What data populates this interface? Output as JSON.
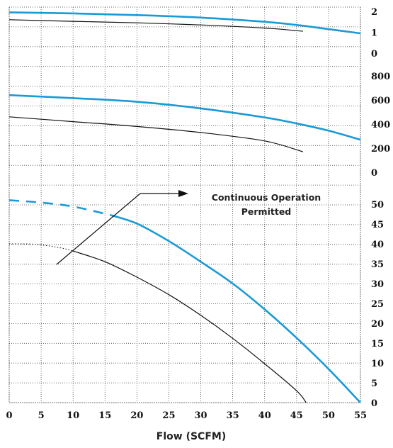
{
  "chart_data": {
    "type": "line",
    "xlabel": "Flow (SCFM)",
    "x_ticks": [
      "0",
      "5",
      "10",
      "15",
      "20",
      "25",
      "30",
      "35",
      "40",
      "45",
      "50",
      "55"
    ],
    "xlim": [
      0,
      55
    ],
    "grid": true,
    "colors": {
      "blue": "#1a9ad6",
      "black": "#111111"
    },
    "annotation": {
      "line1": "Continuous Operation",
      "line2": "Permitted"
    },
    "panels": [
      {
        "id": "top",
        "y_ticks": [
          "2",
          "1",
          "0"
        ],
        "ylim": [
          -0.5,
          2.2
        ],
        "series": [
          {
            "color": "blue",
            "width": 2.6,
            "points": [
              [
                0,
                1.95
              ],
              [
                10,
                1.9
              ],
              [
                20,
                1.82
              ],
              [
                30,
                1.7
              ],
              [
                40,
                1.5
              ],
              [
                45,
                1.35
              ],
              [
                50,
                1.15
              ],
              [
                55,
                0.95
              ]
            ]
          },
          {
            "color": "black",
            "width": 1.2,
            "points": [
              [
                0,
                1.6
              ],
              [
                10,
                1.52
              ],
              [
                20,
                1.45
              ],
              [
                30,
                1.35
              ],
              [
                40,
                1.2
              ],
              [
                46,
                1.05
              ]
            ]
          }
        ]
      },
      {
        "id": "middle",
        "y_ticks": [
          "800",
          "600",
          "400",
          "200",
          "0"
        ],
        "ylim": [
          -100,
          900
        ],
        "series": [
          {
            "color": "blue",
            "width": 2.6,
            "points": [
              [
                0,
                640
              ],
              [
                10,
                615
              ],
              [
                20,
                585
              ],
              [
                30,
                530
              ],
              [
                40,
                455
              ],
              [
                45,
                405
              ],
              [
                50,
                345
              ],
              [
                55,
                270
              ]
            ]
          },
          {
            "color": "black",
            "width": 1.2,
            "points": [
              [
                0,
                460
              ],
              [
                10,
                420
              ],
              [
                20,
                380
              ],
              [
                30,
                330
              ],
              [
                40,
                260
              ],
              [
                46,
                170
              ]
            ]
          }
        ]
      },
      {
        "id": "bottom",
        "y_ticks": [
          "50",
          "45",
          "40",
          "35",
          "30",
          "25",
          "20",
          "15",
          "10",
          "5",
          "0"
        ],
        "ylim": [
          0,
          55
        ],
        "series": [
          {
            "color": "blue",
            "width": 2.6,
            "dash": "14,10",
            "points": [
              [
                0,
                51
              ],
              [
                5,
                50.4
              ],
              [
                10,
                49.4
              ],
              [
                16,
                47.2
              ]
            ]
          },
          {
            "color": "blue",
            "width": 2.6,
            "points": [
              [
                16,
                47.2
              ],
              [
                20,
                45.1
              ],
              [
                25,
                40.7
              ],
              [
                30,
                35.5
              ],
              [
                35,
                30
              ],
              [
                40,
                23.5
              ],
              [
                45,
                16.3
              ],
              [
                50,
                8.5
              ],
              [
                55,
                0
              ]
            ]
          },
          {
            "color": "black",
            "width": 1.0,
            "dash": "1.5,2.5",
            "points": [
              [
                0,
                40
              ],
              [
                4,
                39.9
              ],
              [
                8,
                39
              ],
              [
                10,
                38.2
              ]
            ]
          },
          {
            "color": "black",
            "width": 1.2,
            "points": [
              [
                10,
                38.2
              ],
              [
                15,
                35.5
              ],
              [
                20,
                31.6
              ],
              [
                25,
                27.2
              ],
              [
                30,
                22
              ],
              [
                35,
                16.2
              ],
              [
                40,
                9.8
              ],
              [
                45,
                3
              ],
              [
                46.5,
                0
              ]
            ]
          }
        ]
      }
    ]
  }
}
